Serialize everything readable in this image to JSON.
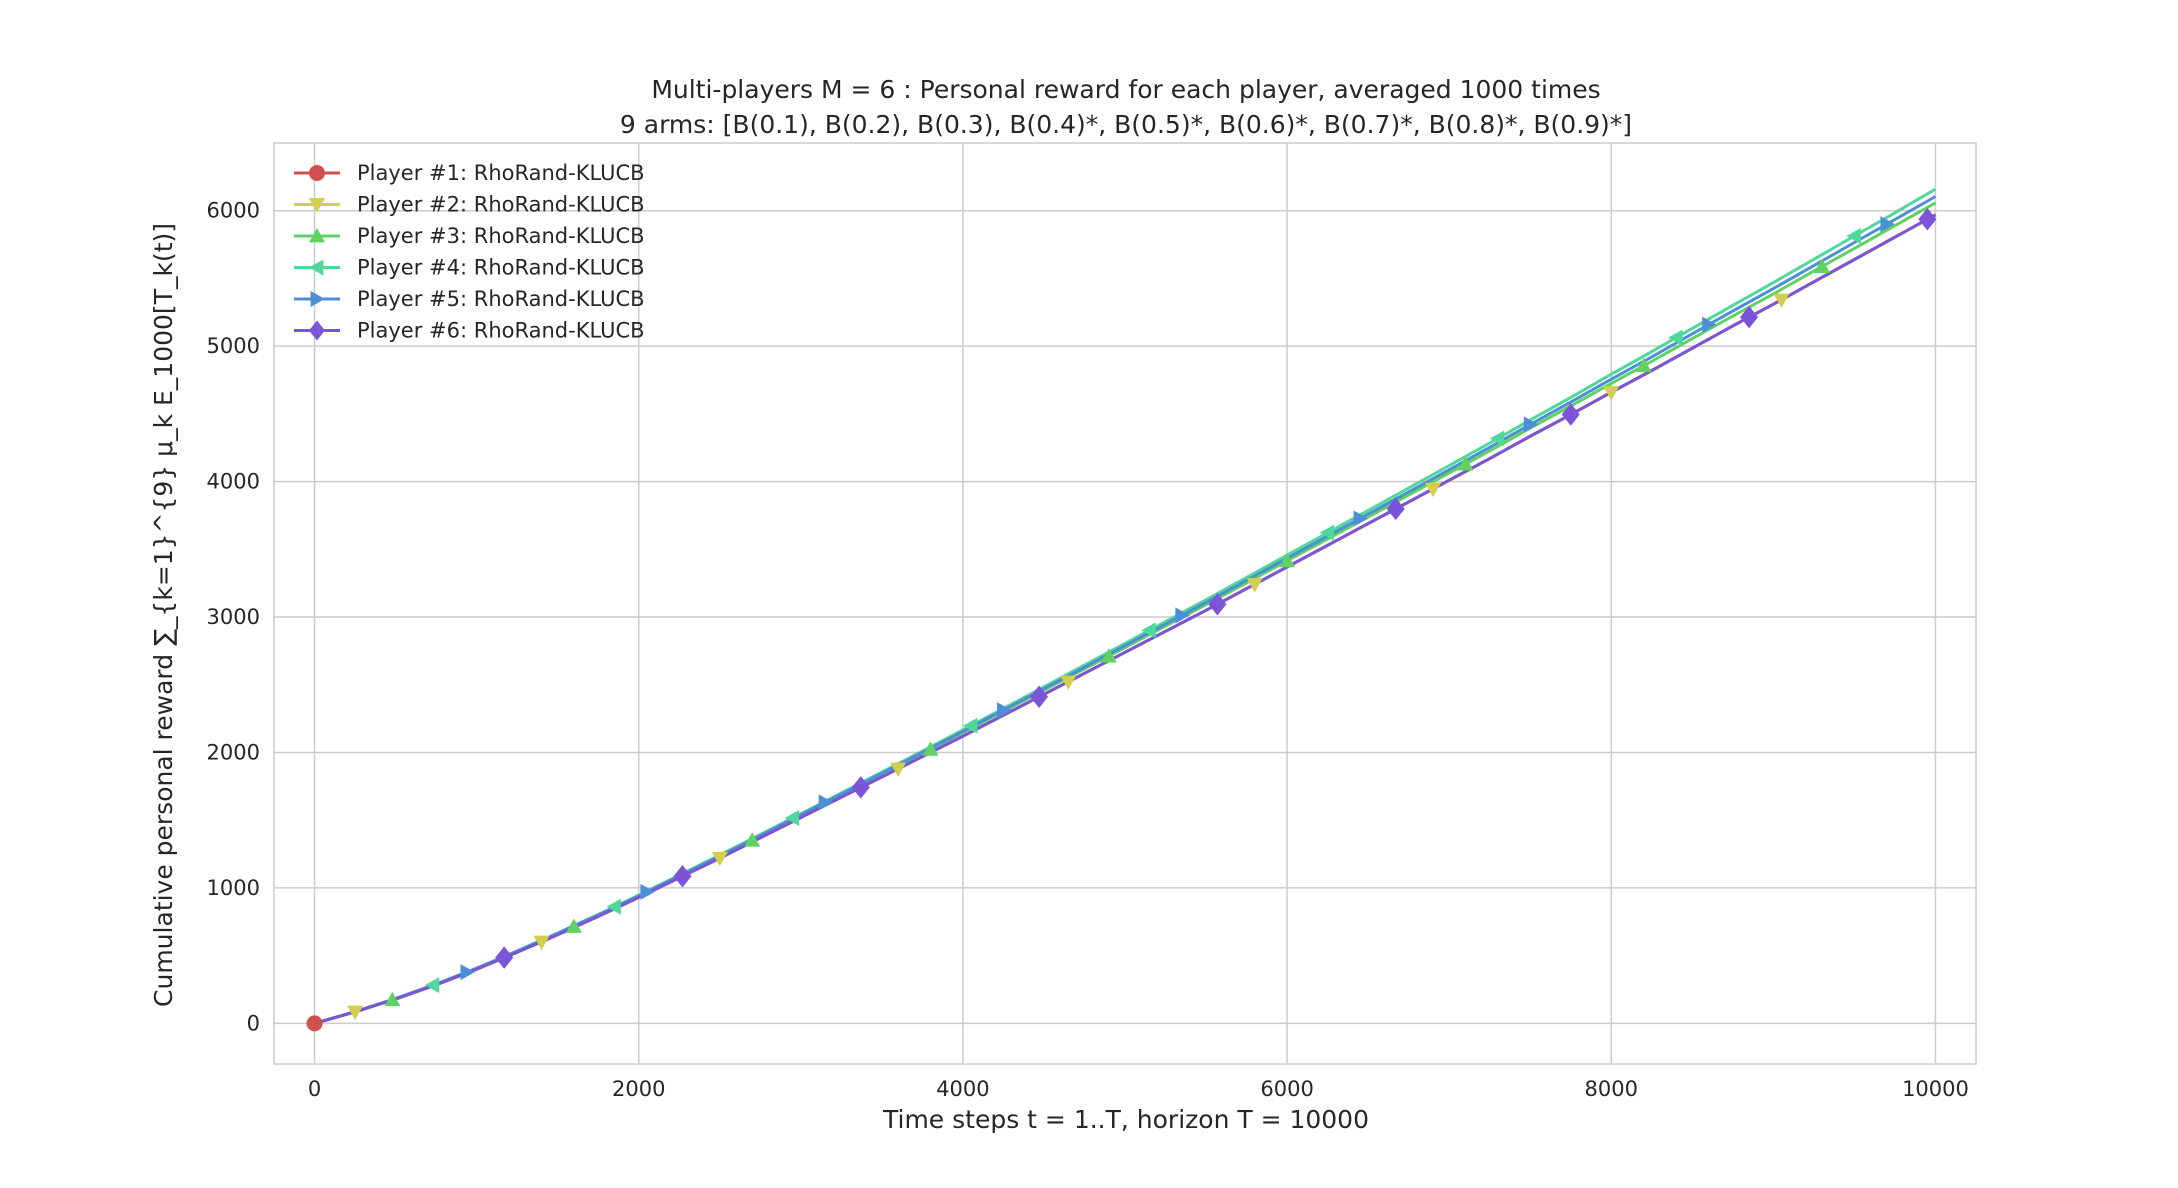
{
  "chart_data": {
    "type": "line",
    "title_line1": "Multi-players M = 6 : Personal reward for each player, averaged 1000 times",
    "title_line2": "9 arms: [B(0.1), B(0.2), B(0.3), B(0.4)*, B(0.5)*, B(0.6)*, B(0.7)*, B(0.8)*, B(0.9)*]",
    "xlabel": "Time steps t = 1..T, horizon T = 10000",
    "ylabel": "Cumulative personal reward ∑_{k=1}^{9} μ_k E_1000[T_k(t)]",
    "xlim": [
      -250,
      10250
    ],
    "ylim": [
      -300,
      6500
    ],
    "xticks": [
      0,
      2000,
      4000,
      6000,
      8000,
      10000
    ],
    "yticks": [
      0,
      1000,
      2000,
      3000,
      4000,
      5000,
      6000
    ],
    "grid": true,
    "legend_position": "top-left",
    "x": [
      0,
      250,
      500,
      750,
      1000,
      1250,
      1500,
      1750,
      2000,
      2250,
      2500,
      2750,
      3000,
      3250,
      3500,
      3750,
      4000,
      4250,
      4500,
      4750,
      5000,
      5250,
      5500,
      5750,
      6000,
      6250,
      6500,
      6750,
      7000,
      7250,
      7500,
      7750,
      8000,
      8250,
      8500,
      8750,
      9000,
      9250,
      9500,
      9750,
      10000
    ],
    "series": [
      {
        "name": "Player #1: RhoRand-KLUCB",
        "color": "#d0504f",
        "marker": "circle",
        "marker_x": [
          0
        ],
        "values": [
          0,
          85,
          180,
          285,
          400,
          525,
          655,
          790,
          930,
          1075,
          1220,
          1370,
          1520,
          1670,
          1820,
          1970,
          2120,
          2275,
          2430,
          2585,
          2740,
          2895,
          3050,
          3210,
          3370,
          3530,
          3690,
          3850,
          4010,
          4170,
          4335,
          4495,
          4660,
          4820,
          4985,
          5150,
          5310,
          5475,
          5640,
          5805,
          5970
        ]
      },
      {
        "name": "Player #2: RhoRand-KLUCB",
        "color": "#d4ce50",
        "marker": "triangle-down",
        "marker_x": [
          250,
          1400,
          2500,
          3600,
          4650,
          5800,
          6900,
          8000,
          9050
        ],
        "values": [
          0,
          84,
          178,
          283,
          398,
          523,
          653,
          788,
          928,
          1073,
          1218,
          1368,
          1518,
          1668,
          1818,
          1968,
          2118,
          2273,
          2428,
          2583,
          2738,
          2893,
          3048,
          3208,
          3368,
          3528,
          3688,
          3848,
          4008,
          4168,
          4333,
          4493,
          4658,
          4818,
          4983,
          5148,
          5308,
          5473,
          5638,
          5803,
          5968
        ]
      },
      {
        "name": "Player #3: RhoRand-KLUCB",
        "color": "#5fd262",
        "marker": "triangle-up",
        "marker_x": [
          480,
          1600,
          2700,
          3800,
          4900,
          6000,
          7100,
          8200,
          9300
        ],
        "values": [
          0,
          86,
          182,
          288,
          404,
          530,
          661,
          797,
          938,
          1084,
          1231,
          1382,
          1534,
          1686,
          1839,
          1992,
          2146,
          2303,
          2460,
          2617,
          2775,
          2933,
          3091,
          3253,
          3415,
          3577,
          3739,
          3901,
          4064,
          4227,
          4395,
          4558,
          4725,
          4888,
          5056,
          5223,
          5386,
          5554,
          5722,
          5890,
          6058
        ]
      },
      {
        "name": "Player #4: RhoRand-KLUCB",
        "color": "#4fd89c",
        "marker": "triangle-left",
        "marker_x": [
          730,
          1850,
          2950,
          4050,
          5150,
          6250,
          7300,
          8400,
          9500
        ],
        "values": [
          0,
          87,
          184,
          291,
          408,
          535,
          667,
          804,
          946,
          1094,
          1242,
          1394,
          1547,
          1701,
          1855,
          2010,
          2166,
          2325,
          2485,
          2645,
          2805,
          2966,
          3127,
          3292,
          3457,
          3622,
          3787,
          3952,
          4118,
          4284,
          4455,
          4622,
          4793,
          4960,
          5131,
          5302,
          5469,
          5641,
          5813,
          5985,
          6160
        ]
      },
      {
        "name": "Player #5: RhoRand-KLUCB",
        "color": "#4d8fd6",
        "marker": "triangle-right",
        "marker_x": [
          940,
          2050,
          3150,
          4250,
          5350,
          6450,
          7500,
          8600,
          9700
        ],
        "values": [
          0,
          86,
          183,
          289,
          406,
          532,
          664,
          800,
          942,
          1088,
          1236,
          1387,
          1540,
          1693,
          1846,
          2000,
          2155,
          2313,
          2471,
          2630,
          2789,
          2948,
          3108,
          3271,
          3434,
          3597,
          3760,
          3924,
          4088,
          4253,
          4422,
          4587,
          4756,
          4921,
          5091,
          5260,
          5425,
          5595,
          5765,
          5935,
          6105
        ]
      },
      {
        "name": "Player #6: RhoRand-KLUCB",
        "color": "#7b54d8",
        "marker": "diamond",
        "marker_x": [
          1170,
          2270,
          3370,
          4470,
          5570,
          6670,
          7750,
          8850,
          9950
        ],
        "values": [
          0,
          85,
          180,
          285,
          400,
          525,
          655,
          790,
          930,
          1075,
          1220,
          1370,
          1520,
          1670,
          1820,
          1970,
          2120,
          2275,
          2430,
          2585,
          2740,
          2895,
          3050,
          3210,
          3370,
          3530,
          3690,
          3850,
          4010,
          4170,
          4335,
          4495,
          4660,
          4820,
          4985,
          5150,
          5310,
          5475,
          5640,
          5805,
          5970
        ]
      }
    ]
  }
}
